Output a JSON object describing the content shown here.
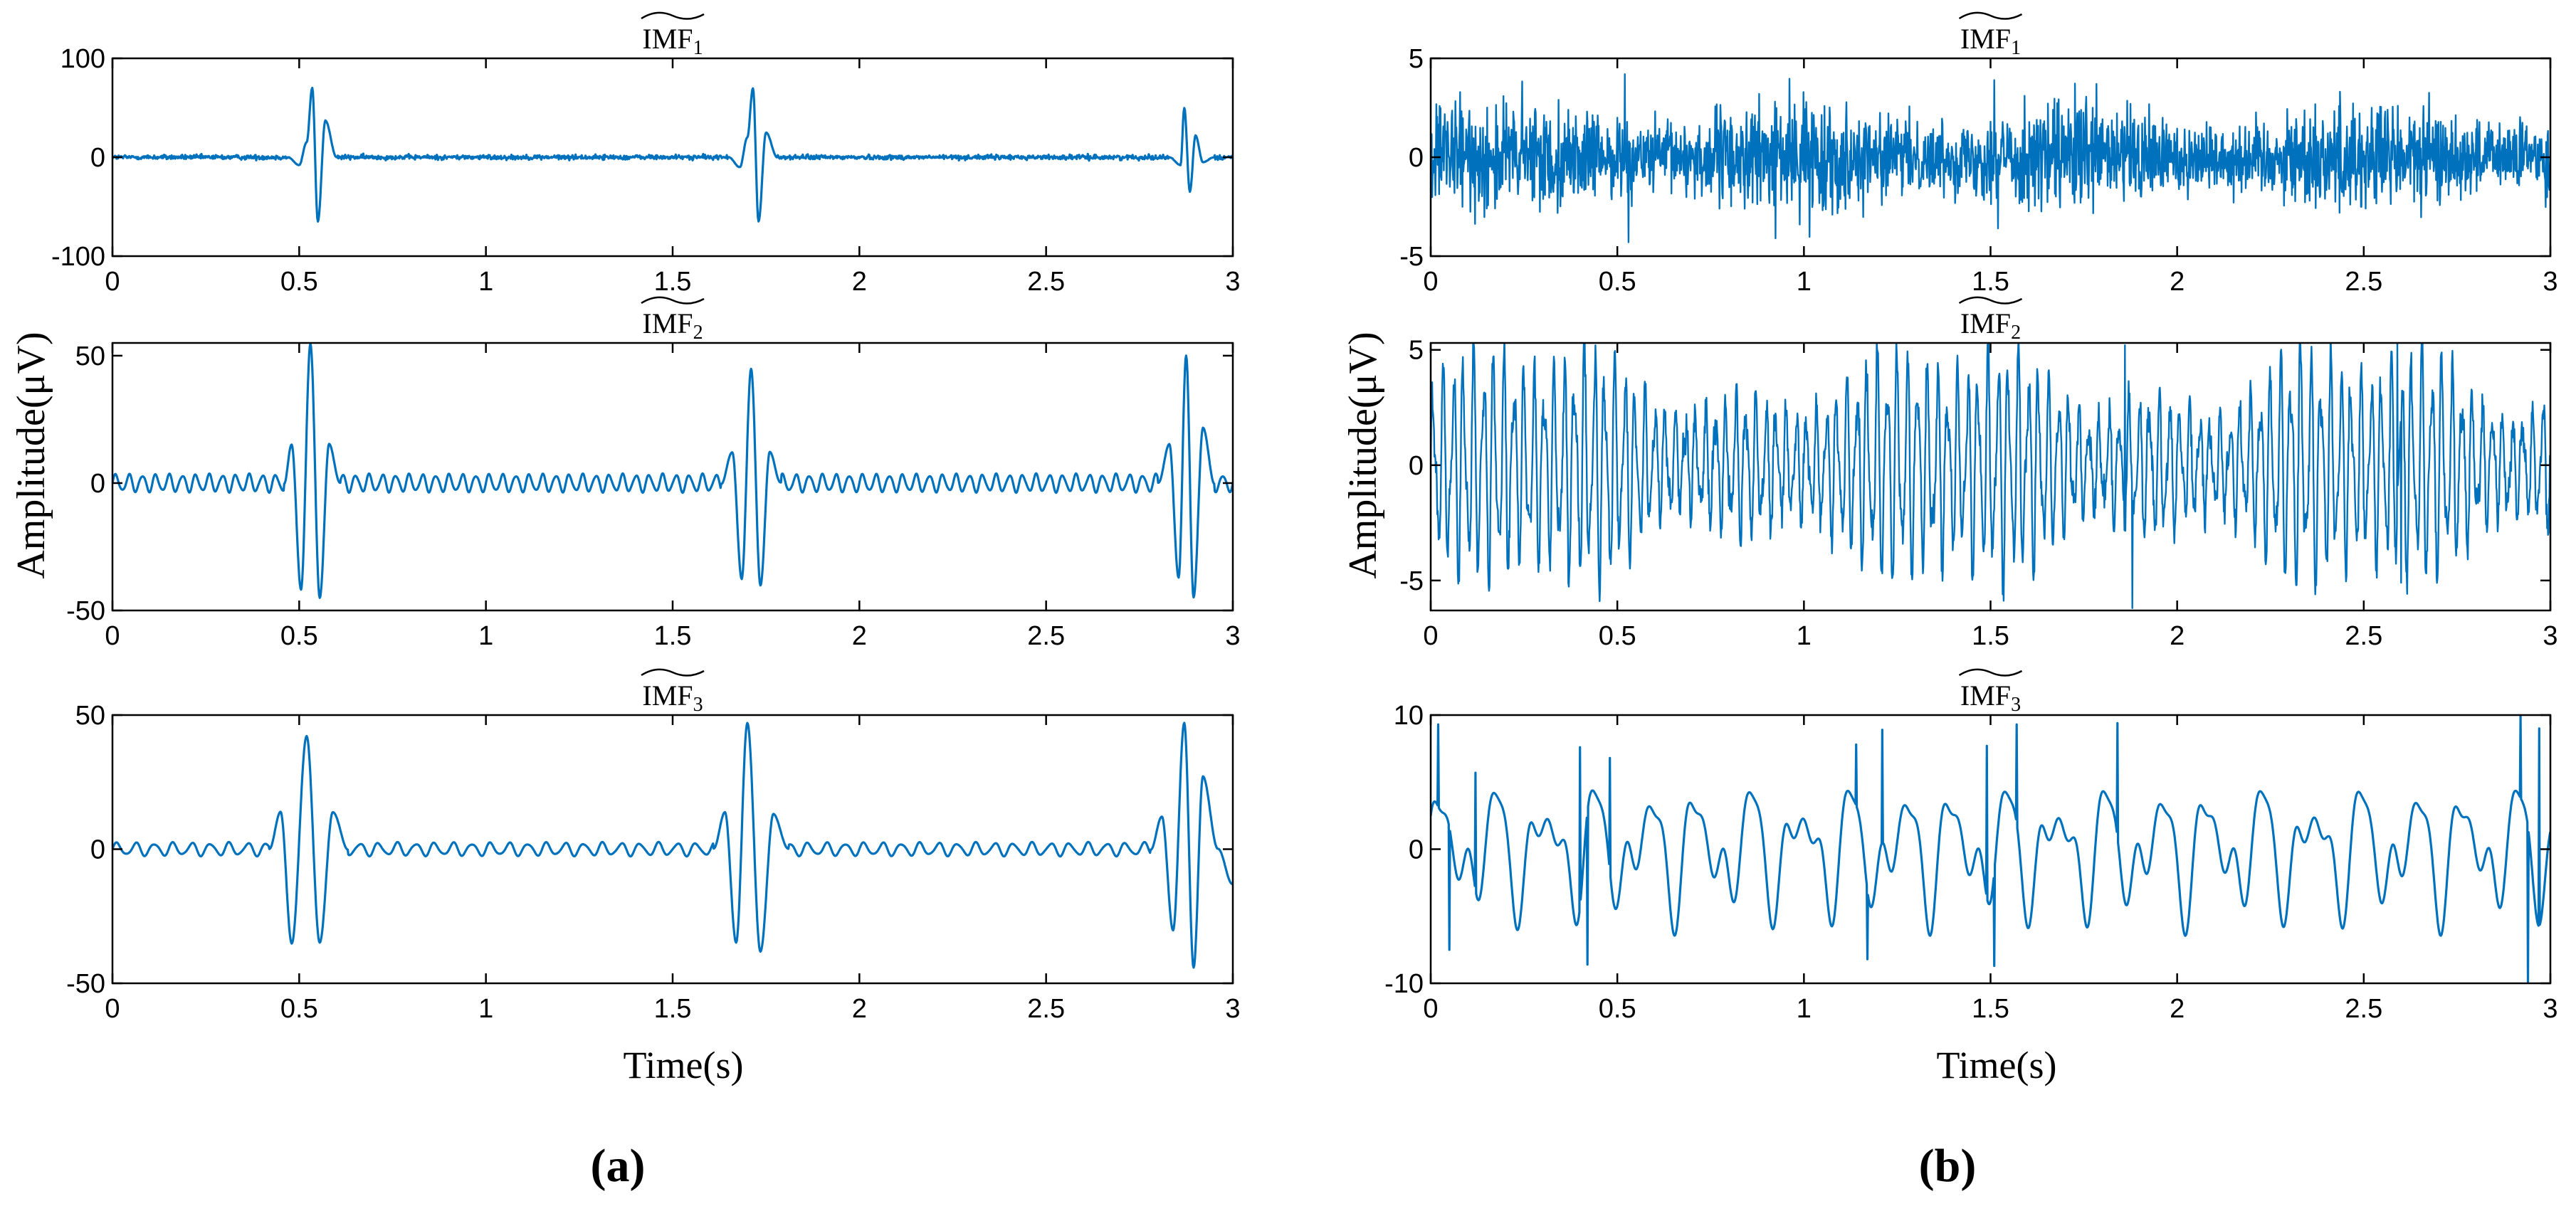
{
  "figure": {
    "ylabel": "Amplitude(μV)",
    "xlabel": "Time(s)",
    "panel_labels": [
      "(a)",
      "(b)"
    ],
    "line_color": "#0072bd"
  },
  "chart_data": [
    {
      "type": "line",
      "panel": "a",
      "title": "IMF1",
      "xlim": [
        0,
        3
      ],
      "ylim": [
        -100,
        100
      ],
      "xticks": [
        "0",
        "0.5",
        "1",
        "1.5",
        "2",
        "2.5",
        "3"
      ],
      "yticks": [
        "100",
        "0",
        "-100"
      ],
      "grid": false,
      "series": [
        {
          "x": [
            0.47,
            0.5,
            0.52,
            0.535,
            0.55,
            0.57,
            0.6,
            1.65,
            1.68,
            1.7,
            1.715,
            1.73,
            1.75,
            1.78,
            2.83,
            2.86,
            2.87,
            2.885,
            2.9,
            2.92,
            2.95
          ],
          "y": [
            0,
            -8,
            15,
            70,
            -65,
            37,
            0,
            0,
            -10,
            20,
            70,
            -65,
            25,
            0,
            0,
            -8,
            50,
            -35,
            22,
            -5,
            0
          ]
        }
      ]
    },
    {
      "type": "line",
      "panel": "a",
      "title": "IMF2",
      "xlim": [
        0,
        3
      ],
      "ylim": [
        -50,
        55
      ],
      "xticks": [
        "0",
        "0.5",
        "1",
        "1.5",
        "2",
        "2.5",
        "3"
      ],
      "yticks": [
        "50",
        "0",
        "-50"
      ],
      "grid": false,
      "series": [
        {
          "x": [
            0.46,
            0.48,
            0.505,
            0.53,
            0.555,
            0.58,
            0.61,
            1.63,
            1.66,
            1.685,
            1.71,
            1.735,
            1.76,
            1.79,
            2.8,
            2.83,
            2.855,
            2.875,
            2.895,
            2.92,
            2.95
          ],
          "y": [
            0,
            15,
            -42,
            55,
            -45,
            15,
            0,
            0,
            12,
            -38,
            45,
            -40,
            12,
            0,
            0,
            15,
            -37,
            50,
            -45,
            22,
            0
          ]
        }
      ]
    },
    {
      "type": "line",
      "panel": "a",
      "title": "IMF3",
      "xlim": [
        0,
        3
      ],
      "ylim": [
        -50,
        50
      ],
      "xticks": [
        "0",
        "0.5",
        "1",
        "1.5",
        "2",
        "2.5",
        "3"
      ],
      "yticks": [
        "50",
        "0",
        "-50"
      ],
      "grid": false,
      "series": [
        {
          "x": [
            0.42,
            0.45,
            0.48,
            0.52,
            0.555,
            0.59,
            0.63,
            1.61,
            1.64,
            1.67,
            1.7,
            1.735,
            1.77,
            1.81,
            2.78,
            2.81,
            2.84,
            2.87,
            2.895,
            2.92,
            2.96,
            3.0
          ],
          "y": [
            0,
            14,
            -35,
            42,
            -35,
            14,
            0,
            0,
            14,
            -35,
            47,
            -38,
            13,
            0,
            0,
            12,
            -30,
            47,
            -44,
            27,
            0,
            -13
          ]
        }
      ]
    },
    {
      "type": "line",
      "panel": "b",
      "title": "IMF1",
      "xlim": [
        0,
        3
      ],
      "ylim": [
        -5,
        5
      ],
      "xticks": [
        "0",
        "0.5",
        "1",
        "1.5",
        "2",
        "2.5",
        "3"
      ],
      "yticks": [
        "5",
        "0",
        "-5"
      ],
      "grid": false,
      "series": [
        {
          "x": [
            0,
            0.52,
            0.53,
            1.51,
            1.52,
            3.0
          ],
          "y": [
            0,
            4.2,
            -4.3,
            3.9,
            -3.6,
            0
          ]
        }
      ]
    },
    {
      "type": "line",
      "panel": "b",
      "title": "IMF2",
      "xlim": [
        0,
        3
      ],
      "ylim": [
        -6.3,
        5.3
      ],
      "xticks": [
        "0",
        "0.5",
        "1",
        "1.5",
        "2",
        "2.5",
        "3"
      ],
      "yticks": [
        "5",
        "0",
        "-5"
      ],
      "grid": false,
      "series": [
        {
          "x": [
            0,
            1.86,
            1.88,
            2.59,
            2.6,
            3.0
          ],
          "y": [
            0,
            5.2,
            -6.2,
            5.3,
            -5.1,
            0
          ]
        }
      ]
    },
    {
      "type": "line",
      "panel": "b",
      "title": "IMF3",
      "xlim": [
        0,
        3
      ],
      "ylim": [
        -10,
        10
      ],
      "xticks": [
        "0",
        "0.5",
        "1",
        "1.5",
        "2",
        "2.5",
        "3"
      ],
      "yticks": [
        "10",
        "0",
        "-10"
      ],
      "grid": false,
      "series": [
        {
          "x": [
            0.02,
            0.05,
            0.12,
            0.4,
            0.42,
            0.48,
            1.14,
            1.17,
            1.21,
            1.49,
            1.51,
            1.57,
            1.84,
            2.92,
            2.94,
            2.97
          ],
          "y": [
            9.3,
            -7.5,
            5.7,
            7.6,
            -8.6,
            6.8,
            7.8,
            -8.2,
            8.9,
            7.7,
            -8.7,
            9.3,
            9.4,
            10,
            -10,
            9
          ]
        }
      ]
    }
  ]
}
